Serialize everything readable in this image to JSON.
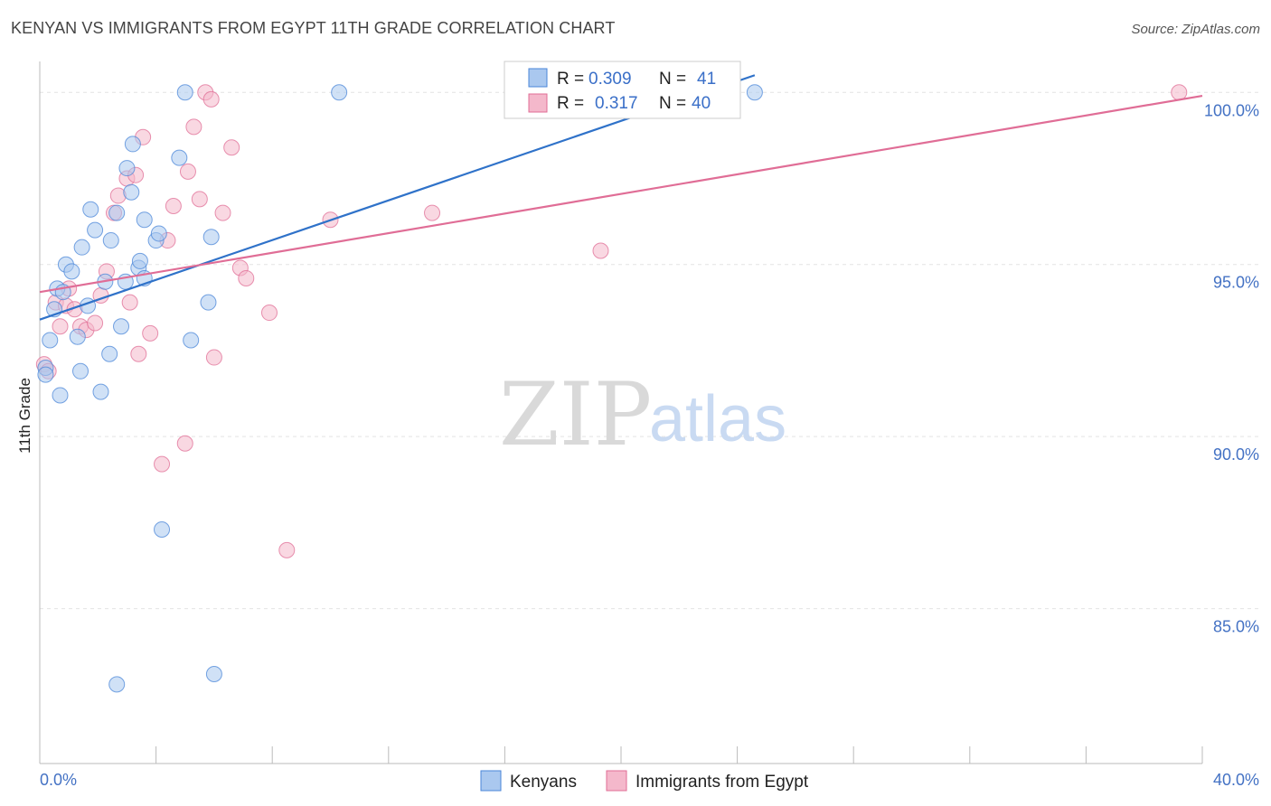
{
  "header": {
    "title": "KENYAN VS IMMIGRANTS FROM EGYPT 11TH GRADE CORRELATION CHART",
    "source": "Source: ZipAtlas.com"
  },
  "watermark": {
    "zip": "ZIP",
    "atlas": "atlas"
  },
  "colors": {
    "blue": "#4a86d8",
    "blue_fill": "#aac8ef",
    "pink": "#e06d96",
    "pink_fill": "#f4b8cb",
    "grid": "#e3e3e3",
    "tick_text": "#4472c4"
  },
  "legend": {
    "rows": [
      {
        "r_label": "R =",
        "r_value": "0.309",
        "n_label": "N =",
        "n_value": "41"
      },
      {
        "r_label": "R =",
        "r_value": "0.317",
        "n_label": "N =",
        "n_value": "40"
      }
    ]
  },
  "chart_data": {
    "type": "scatter",
    "title": "KENYAN VS IMMIGRANTS FROM EGYPT 11TH GRADE CORRELATION CHART",
    "xlabel": "",
    "ylabel": "11th Grade",
    "xlim": [
      0,
      40
    ],
    "ylim": [
      80.5,
      100.9
    ],
    "x_tick_labels": [
      "0.0%",
      "40.0%"
    ],
    "y_ticks": [
      85,
      90,
      95,
      100
    ],
    "y_tick_labels": [
      "85.0%",
      "90.0%",
      "95.0%",
      "100.0%"
    ],
    "legend_position": "bottom",
    "series": [
      {
        "name": "Kenyans",
        "r": 0.309,
        "n": 41,
        "trend": {
          "x0": 0,
          "y0": 93.4,
          "x1": 24.6,
          "y1": 100.5
        },
        "points": [
          [
            0.2,
            92.0
          ],
          [
            0.2,
            91.8
          ],
          [
            0.35,
            92.8
          ],
          [
            0.5,
            93.7
          ],
          [
            0.6,
            94.3
          ],
          [
            0.7,
            91.2
          ],
          [
            0.8,
            94.2
          ],
          [
            0.9,
            95.0
          ],
          [
            1.1,
            94.8
          ],
          [
            1.3,
            92.9
          ],
          [
            1.4,
            91.9
          ],
          [
            1.45,
            95.5
          ],
          [
            1.65,
            93.8
          ],
          [
            1.75,
            96.6
          ],
          [
            1.9,
            96.0
          ],
          [
            2.1,
            91.3
          ],
          [
            2.25,
            94.5
          ],
          [
            2.4,
            92.4
          ],
          [
            2.45,
            95.7
          ],
          [
            2.65,
            96.5
          ],
          [
            2.65,
            82.8
          ],
          [
            2.8,
            93.2
          ],
          [
            2.95,
            94.5
          ],
          [
            3.0,
            97.8
          ],
          [
            3.15,
            97.1
          ],
          [
            3.2,
            98.5
          ],
          [
            3.4,
            94.9
          ],
          [
            3.45,
            95.1
          ],
          [
            3.6,
            96.3
          ],
          [
            3.6,
            94.6
          ],
          [
            4.0,
            95.7
          ],
          [
            4.1,
            95.9
          ],
          [
            4.2,
            87.3
          ],
          [
            4.8,
            98.1
          ],
          [
            5.0,
            100.0
          ],
          [
            5.2,
            92.8
          ],
          [
            5.8,
            93.9
          ],
          [
            5.9,
            95.8
          ],
          [
            6.0,
            83.1
          ],
          [
            10.3,
            100.0
          ],
          [
            24.6,
            100.0
          ]
        ]
      },
      {
        "name": "Immigrants from Egypt",
        "r": 0.317,
        "n": 40,
        "trend": {
          "x0": 0,
          "y0": 94.2,
          "x1": 40,
          "y1": 99.9
        },
        "points": [
          [
            0.15,
            92.1
          ],
          [
            0.3,
            91.9
          ],
          [
            0.55,
            93.9
          ],
          [
            0.7,
            93.2
          ],
          [
            0.9,
            93.8
          ],
          [
            1.0,
            94.3
          ],
          [
            1.2,
            93.7
          ],
          [
            1.4,
            93.2
          ],
          [
            1.6,
            93.1
          ],
          [
            1.9,
            93.3
          ],
          [
            2.1,
            94.1
          ],
          [
            2.3,
            94.8
          ],
          [
            2.55,
            96.5
          ],
          [
            2.7,
            97.0
          ],
          [
            3.0,
            97.5
          ],
          [
            3.1,
            93.9
          ],
          [
            3.3,
            97.6
          ],
          [
            3.4,
            92.4
          ],
          [
            3.55,
            98.7
          ],
          [
            3.8,
            93.0
          ],
          [
            4.2,
            89.2
          ],
          [
            4.4,
            95.7
          ],
          [
            4.6,
            96.7
          ],
          [
            5.0,
            89.8
          ],
          [
            5.1,
            97.7
          ],
          [
            5.3,
            99.0
          ],
          [
            5.5,
            96.9
          ],
          [
            5.7,
            100.0
          ],
          [
            5.9,
            99.8
          ],
          [
            6.0,
            92.3
          ],
          [
            6.3,
            96.5
          ],
          [
            6.6,
            98.4
          ],
          [
            6.9,
            94.9
          ],
          [
            7.1,
            94.6
          ],
          [
            7.9,
            93.6
          ],
          [
            8.5,
            86.7
          ],
          [
            10.0,
            96.3
          ],
          [
            13.5,
            96.5
          ],
          [
            19.3,
            95.4
          ],
          [
            39.2,
            100.0
          ]
        ]
      }
    ]
  }
}
